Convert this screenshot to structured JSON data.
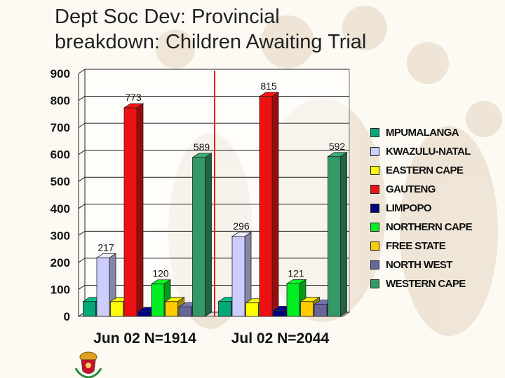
{
  "page": {
    "title_line1": "Dept Soc Dev: Provincial",
    "title_line2": "breakdown: Children Awaiting Trial",
    "colors": {
      "background": "#fdfaf4",
      "divider": "#e02020"
    },
    "emblem_icon": "coat-of-arms-icon"
  },
  "chart_data": {
    "type": "bar",
    "title": "Dept Soc Dev: Provincial breakdown: Children Awaiting Trial",
    "xlabel": "",
    "ylabel": "",
    "ylim": [
      0,
      900
    ],
    "yticks": [
      "0",
      "100",
      "200",
      "300",
      "400",
      "500",
      "600",
      "700",
      "800",
      "900"
    ],
    "categories": [
      "Jun 02   N=1914",
      "Jul 02 N=2044"
    ],
    "grid": true,
    "legend_position": "right",
    "series": [
      {
        "name": "MPUMALANGA",
        "color": "#00a878",
        "values": [
          55,
          55
        ],
        "labels": [
          "",
          ""
        ]
      },
      {
        "name": "KWAZULU-NATAL",
        "color": "#ccccff",
        "values": [
          217,
          296
        ],
        "labels": [
          "217",
          "296"
        ]
      },
      {
        "name": "EASTERN CAPE",
        "color": "#ffff00",
        "values": [
          55,
          50
        ],
        "labels": [
          "",
          ""
        ]
      },
      {
        "name": "GAUTENG",
        "color": "#ee1111",
        "values": [
          773,
          815
        ],
        "labels": [
          "773",
          "815"
        ]
      },
      {
        "name": "LIMPOPO",
        "color": "#000080",
        "values": [
          18,
          22
        ],
        "labels": [
          "",
          ""
        ]
      },
      {
        "name": "NORTHERN CAPE",
        "color": "#00ee22",
        "values": [
          120,
          121
        ],
        "labels": [
          "120",
          "121"
        ]
      },
      {
        "name": "FREE STATE",
        "color": "#ffcc00",
        "values": [
          55,
          55
        ],
        "labels": [
          "",
          ""
        ]
      },
      {
        "name": "NORTH WEST",
        "color": "#666699",
        "values": [
          35,
          45
        ],
        "labels": [
          "",
          ""
        ]
      },
      {
        "name": "WESTERN CAPE",
        "color": "#339966",
        "values": [
          589,
          592
        ],
        "labels": [
          "589",
          "592"
        ]
      }
    ]
  }
}
